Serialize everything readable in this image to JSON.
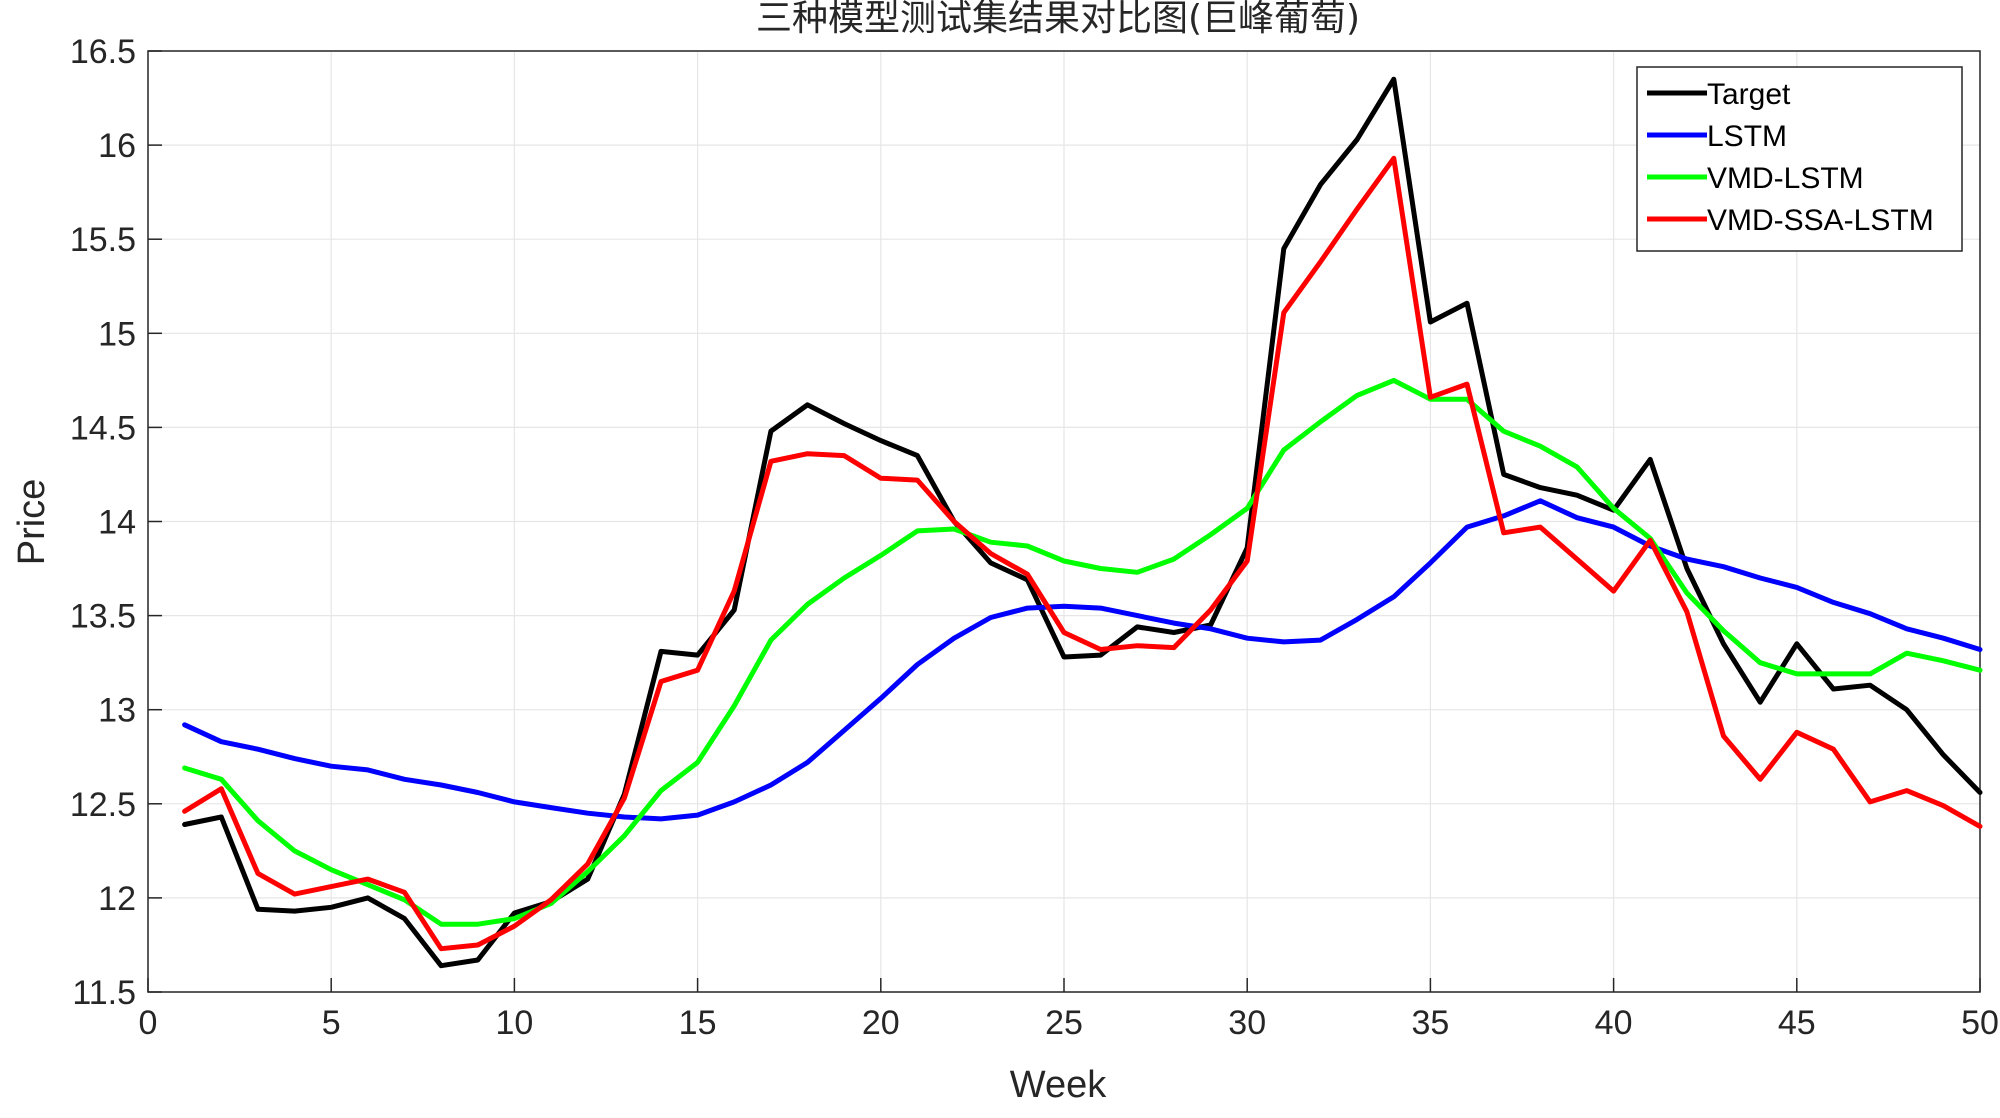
{
  "chart_data": {
    "type": "line",
    "title": "三种模型测试集结果对比图(巨峰葡萄)",
    "xlabel": "Week",
    "ylabel": "Price",
    "xlim": [
      0,
      50
    ],
    "ylim": [
      11.5,
      16.5
    ],
    "xticks": [
      0,
      5,
      10,
      15,
      20,
      25,
      30,
      35,
      40,
      45,
      50
    ],
    "yticks": [
      11.5,
      12,
      12.5,
      13,
      13.5,
      14,
      14.5,
      15,
      15.5,
      16,
      16.5
    ],
    "xtick_labels": [
      "0",
      "5",
      "10",
      "15",
      "20",
      "25",
      "30",
      "35",
      "40",
      "45",
      "50"
    ],
    "ytick_labels": [
      "11.5",
      "12",
      "12.5",
      "13",
      "13.5",
      "14",
      "14.5",
      "15",
      "15.5",
      "16",
      "16.5"
    ],
    "grid": true,
    "legend_position": "top-right",
    "x": [
      1,
      2,
      3,
      4,
      5,
      6,
      7,
      8,
      9,
      10,
      11,
      12,
      13,
      14,
      15,
      16,
      17,
      18,
      19,
      20,
      21,
      22,
      23,
      24,
      25,
      26,
      27,
      28,
      29,
      30,
      31,
      32,
      33,
      34,
      35,
      36,
      37,
      38,
      39,
      40,
      41,
      42,
      43,
      44,
      45,
      46,
      47,
      48,
      49,
      50
    ],
    "series": [
      {
        "name": "Target",
        "color": "#000000",
        "values": [
          12.39,
          12.43,
          11.94,
          11.93,
          11.95,
          12.0,
          11.89,
          11.64,
          11.67,
          11.92,
          11.98,
          12.1,
          12.55,
          13.31,
          13.29,
          13.53,
          14.48,
          14.62,
          14.52,
          14.43,
          14.35,
          14.0,
          13.78,
          13.69,
          13.28,
          13.29,
          13.44,
          13.41,
          13.45,
          13.86,
          15.45,
          15.79,
          16.03,
          16.35,
          15.06,
          15.16,
          14.25,
          14.18,
          14.14,
          14.06,
          14.33,
          13.75,
          13.35,
          13.04,
          13.35,
          13.11,
          13.13,
          13.0,
          12.76,
          12.56
        ]
      },
      {
        "name": "LSTM",
        "color": "#0000ff",
        "values": [
          12.92,
          12.83,
          12.79,
          12.74,
          12.7,
          12.68,
          12.63,
          12.6,
          12.56,
          12.51,
          12.48,
          12.45,
          12.43,
          12.42,
          12.44,
          12.51,
          12.6,
          12.72,
          12.89,
          13.06,
          13.24,
          13.38,
          13.49,
          13.54,
          13.55,
          13.54,
          13.5,
          13.46,
          13.43,
          13.38,
          13.36,
          13.37,
          13.48,
          13.6,
          13.78,
          13.97,
          14.03,
          14.11,
          14.02,
          13.97,
          13.87,
          13.8,
          13.76,
          13.7,
          13.65,
          13.57,
          13.51,
          13.43,
          13.38,
          13.32
        ]
      },
      {
        "name": "VMD-LSTM",
        "color": "#00ff00",
        "values": [
          12.69,
          12.63,
          12.41,
          12.25,
          12.15,
          12.07,
          11.99,
          11.86,
          11.86,
          11.89,
          11.97,
          12.14,
          12.33,
          12.57,
          12.72,
          13.02,
          13.37,
          13.56,
          13.7,
          13.82,
          13.95,
          13.96,
          13.89,
          13.87,
          13.79,
          13.75,
          13.73,
          13.8,
          13.93,
          14.07,
          14.38,
          14.53,
          14.67,
          14.75,
          14.65,
          14.65,
          14.48,
          14.4,
          14.29,
          14.07,
          13.91,
          13.62,
          13.42,
          13.25,
          13.19,
          13.19,
          13.19,
          13.3,
          13.26,
          13.21
        ]
      },
      {
        "name": "VMD-SSA-LSTM",
        "color": "#ff0000",
        "values": [
          12.46,
          12.58,
          12.13,
          12.02,
          12.06,
          12.1,
          12.03,
          11.73,
          11.75,
          11.85,
          11.99,
          12.18,
          12.53,
          13.15,
          13.21,
          13.63,
          14.32,
          14.36,
          14.35,
          14.23,
          14.22,
          14.0,
          13.83,
          13.72,
          13.41,
          13.32,
          13.34,
          13.33,
          13.53,
          13.79,
          15.11,
          15.38,
          15.66,
          15.93,
          14.66,
          14.73,
          13.94,
          13.97,
          13.8,
          13.63,
          13.9,
          13.52,
          12.86,
          12.63,
          12.88,
          12.79,
          12.51,
          12.57,
          12.49,
          12.38
        ]
      }
    ]
  }
}
